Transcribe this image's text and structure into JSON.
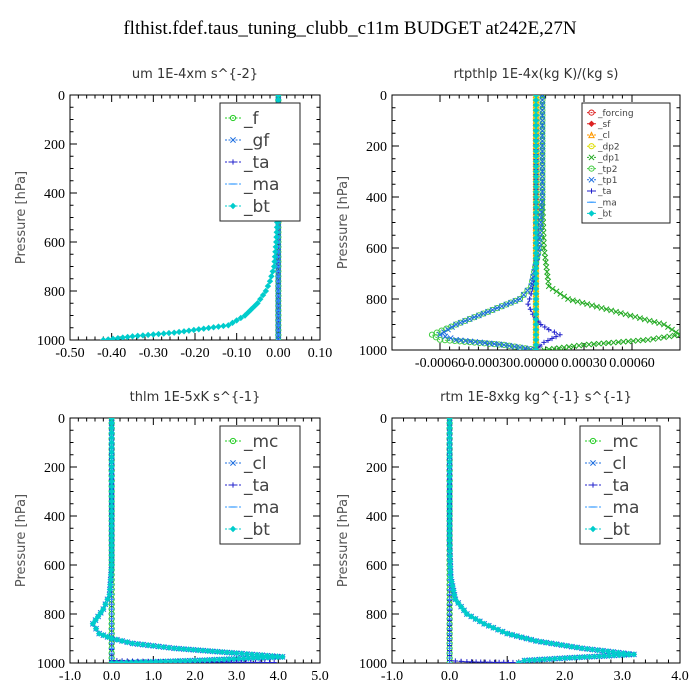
{
  "main_title": "flthist.fdef.taus_tuning_clubb_c11m  BUDGET at242E,27N",
  "chart_data": [
    {
      "type": "line",
      "title": "um  1E-4xm s^{-2}",
      "ylabel": "Pressure [hPa]",
      "xlim": [
        -0.5,
        0.1
      ],
      "ylim": [
        1000,
        0
      ],
      "x_ticks": [
        "-0.50",
        "-0.40",
        "-0.30",
        "-0.20",
        "-0.10",
        "0.00",
        "0.10"
      ],
      "x_tick_values": [
        -0.5,
        -0.4,
        -0.3,
        -0.2,
        -0.1,
        0.0,
        0.1
      ],
      "y_ticks": [
        "0",
        "200",
        "400",
        "600",
        "800",
        "1000"
      ],
      "y_tick_values": [
        0,
        200,
        400,
        600,
        800,
        1000
      ],
      "legend": {
        "position": "top-right",
        "size": "large"
      },
      "series": [
        {
          "name": "_f",
          "color": "#22cc22",
          "marker": "circle",
          "x": [
            0,
            0,
            0,
            0,
            0,
            0,
            0
          ],
          "y": [
            0,
            150,
            300,
            500,
            700,
            900,
            1000
          ]
        },
        {
          "name": "_gf",
          "color": "#1e6fe0",
          "marker": "cross",
          "x": [
            0,
            0,
            0,
            0,
            0,
            0,
            0
          ],
          "y": [
            0,
            150,
            300,
            500,
            700,
            900,
            1000
          ]
        },
        {
          "name": "_ta",
          "color": "#2222cc",
          "marker": "plus",
          "x": [
            0,
            0,
            0,
            0,
            0,
            0,
            0
          ],
          "y": [
            0,
            150,
            300,
            500,
            700,
            900,
            1000
          ]
        },
        {
          "name": "_ma",
          "color": "#3399ff",
          "marker": "dash",
          "x": [
            0,
            0,
            0,
            0,
            0,
            0,
            0
          ],
          "y": [
            0,
            150,
            300,
            500,
            700,
            900,
            1000
          ]
        },
        {
          "name": "_bt",
          "color": "#00cccc",
          "marker": "diamond",
          "x": [
            0.0,
            0.0,
            0.0,
            -0.002,
            -0.005,
            -0.01,
            -0.02,
            -0.03,
            -0.05,
            -0.08,
            -0.12,
            -0.25,
            -0.35,
            -0.42
          ],
          "y": [
            0,
            100,
            300,
            500,
            600,
            700,
            760,
            800,
            850,
            900,
            940,
            970,
            985,
            1000
          ]
        }
      ]
    },
    {
      "type": "line",
      "title": "rtpthlp  1E-4x(kg K)/(kg s)",
      "ylabel": "Pressure [hPa]",
      "xlim": [
        -0.0009,
        0.0009
      ],
      "ylim": [
        1000,
        0
      ],
      "x_ticks": [
        "-0.00060",
        "-0.00030",
        "0.00000",
        "0.00030",
        "0.00060"
      ],
      "x_tick_values": [
        -0.0006,
        -0.0003,
        0.0,
        0.0003,
        0.0006
      ],
      "y_ticks": [
        "0",
        "200",
        "400",
        "600",
        "800",
        "1000"
      ],
      "y_tick_values": [
        0,
        200,
        400,
        600,
        800,
        1000
      ],
      "legend": {
        "position": "top-right",
        "size": "small"
      },
      "series": [
        {
          "name": "_forcing",
          "color": "#dd2222",
          "marker": "circle",
          "x": [
            0,
            0,
            0,
            0,
            0,
            0
          ],
          "y": [
            0,
            200,
            400,
            600,
            800,
            1000
          ]
        },
        {
          "name": "_sf",
          "color": "#dd2222",
          "marker": "diamond",
          "x": [
            0,
            0,
            0,
            0,
            0,
            0
          ],
          "y": [
            0,
            200,
            400,
            600,
            800,
            1000
          ]
        },
        {
          "name": "_cl",
          "color": "#ff9900",
          "marker": "triangle",
          "x": [
            0,
            0,
            0,
            0,
            0,
            0
          ],
          "y": [
            0,
            200,
            400,
            600,
            800,
            1000
          ]
        },
        {
          "name": "_dp2",
          "color": "#dddd00",
          "marker": "circle",
          "x": [
            0,
            0,
            0,
            0,
            0,
            0
          ],
          "y": [
            0,
            200,
            400,
            600,
            800,
            1000
          ]
        },
        {
          "name": "_dp1",
          "color": "#22aa22",
          "marker": "cross",
          "x": [
            4e-05,
            4e-05,
            4e-05,
            5e-05,
            8e-05,
            0.0002,
            0.0005,
            0.0008,
            0.0009,
            0.0007,
            0.0003,
            5e-05
          ],
          "y": [
            0,
            200,
            400,
            600,
            750,
            800,
            850,
            900,
            940,
            960,
            980,
            1000
          ]
        },
        {
          "name": "_tp2",
          "color": "#44cc44",
          "marker": "circle",
          "x": [
            4e-05,
            4e-05,
            4e-05,
            2e-05,
            -3e-05,
            -0.0001,
            -0.0003,
            -0.0005,
            -0.00065,
            -0.0006,
            -0.0002,
            0.0
          ],
          "y": [
            0,
            200,
            400,
            600,
            750,
            800,
            850,
            900,
            940,
            960,
            980,
            1000
          ]
        },
        {
          "name": "_tp1",
          "color": "#1e6fe0",
          "marker": "cross",
          "x": [
            4e-05,
            4e-05,
            4e-05,
            2e-05,
            -3e-05,
            -0.0001,
            -0.0003,
            -0.0005,
            -0.0006,
            -0.0005,
            -0.0002,
            0.0
          ],
          "y": [
            0,
            200,
            400,
            600,
            750,
            800,
            850,
            900,
            940,
            960,
            980,
            1000
          ]
        },
        {
          "name": "_ta",
          "color": "#2222cc",
          "marker": "plus",
          "x": [
            0,
            0,
            -3e-05,
            -5e-05,
            -2e-05,
            3e-05,
            8e-05,
            0.00015,
            5e-05,
            0.0
          ],
          "y": [
            0,
            700,
            780,
            820,
            860,
            900,
            920,
            940,
            970,
            1000
          ]
        },
        {
          "name": "_ma",
          "color": "#3399ff",
          "marker": "dash",
          "x": [
            0,
            0,
            0,
            0,
            0,
            0
          ],
          "y": [
            0,
            200,
            400,
            600,
            800,
            1000
          ]
        },
        {
          "name": "_bt",
          "color": "#00cccc",
          "marker": "diamond",
          "x": [
            0,
            0,
            0,
            0,
            0,
            0
          ],
          "y": [
            0,
            200,
            400,
            600,
            800,
            1000
          ]
        }
      ]
    },
    {
      "type": "line",
      "title": "thlm  1E-5xK s^{-1}",
      "ylabel": "Pressure [hPa]",
      "xlim": [
        -1.0,
        5.0
      ],
      "ylim": [
        1000,
        0
      ],
      "x_ticks": [
        "-1.0",
        "0.0",
        "1.0",
        "2.0",
        "3.0",
        "4.0",
        "5.0"
      ],
      "x_tick_values": [
        -1,
        0,
        1,
        2,
        3,
        4,
        5
      ],
      "y_ticks": [
        "0",
        "200",
        "400",
        "600",
        "800",
        "1000"
      ],
      "y_tick_values": [
        0,
        200,
        400,
        600,
        800,
        1000
      ],
      "legend": {
        "position": "top-right",
        "size": "large"
      },
      "series": [
        {
          "name": "_mc",
          "color": "#22cc22",
          "marker": "circle",
          "x": [
            0,
            0,
            0,
            0,
            0,
            0,
            0
          ],
          "y": [
            0,
            150,
            300,
            500,
            700,
            900,
            1000
          ]
        },
        {
          "name": "_cl",
          "color": "#1e6fe0",
          "marker": "cross",
          "x": [
            0.0,
            0.0,
            0.0,
            0.0,
            -0.05,
            -0.2,
            -0.45,
            -0.3,
            0.0,
            0.5,
            1.5,
            3.0,
            4.1,
            2.0,
            0.0
          ],
          "y": [
            0,
            200,
            400,
            600,
            720,
            780,
            840,
            880,
            900,
            920,
            940,
            960,
            975,
            990,
            1000
          ]
        },
        {
          "name": "_ta",
          "color": "#2222cc",
          "marker": "plus",
          "x": [
            0,
            0,
            0,
            0,
            1.0,
            2.0,
            3.0,
            3.9
          ],
          "y": [
            0,
            600,
            900,
            990,
            994,
            996,
            997,
            998
          ]
        },
        {
          "name": "_ma",
          "color": "#3399ff",
          "marker": "dash",
          "x": [
            0,
            0,
            0,
            0,
            0,
            0
          ],
          "y": [
            0,
            200,
            400,
            600,
            800,
            1000
          ]
        },
        {
          "name": "_bt",
          "color": "#00cccc",
          "marker": "diamond",
          "x": [
            0.0,
            0.0,
            0.0,
            0.0,
            -0.05,
            -0.2,
            -0.45,
            -0.3,
            0.0,
            0.5,
            1.5,
            3.0,
            4.1,
            2.0,
            0.0
          ],
          "y": [
            0,
            200,
            400,
            600,
            720,
            780,
            840,
            880,
            900,
            920,
            940,
            960,
            975,
            990,
            1000
          ]
        }
      ]
    },
    {
      "type": "line",
      "title": "rtm  1E-8xkg kg^{-1} s^{-1}",
      "ylabel": "Pressure [hPa]",
      "xlim": [
        -1.0,
        4.0
      ],
      "ylim": [
        1000,
        0
      ],
      "x_ticks": [
        "-1.0",
        "0.0",
        "1.0",
        "2.0",
        "3.0",
        "4.0"
      ],
      "x_tick_values": [
        -1,
        0,
        1,
        2,
        3,
        4
      ],
      "y_ticks": [
        "0",
        "200",
        "400",
        "600",
        "800",
        "1000"
      ],
      "y_tick_values": [
        0,
        200,
        400,
        600,
        800,
        1000
      ],
      "legend": {
        "position": "top-right",
        "size": "large"
      },
      "series": [
        {
          "name": "_mc",
          "color": "#22cc22",
          "marker": "circle",
          "x": [
            0,
            0,
            0,
            0,
            0,
            0,
            0
          ],
          "y": [
            0,
            150,
            300,
            500,
            700,
            900,
            1000
          ]
        },
        {
          "name": "_cl",
          "color": "#1e6fe0",
          "marker": "cross",
          "x": [
            0.0,
            0.0,
            0.0,
            0.02,
            0.1,
            0.3,
            0.6,
            1.0,
            1.5,
            2.3,
            3.2,
            2.0,
            1.3,
            1.2
          ],
          "y": [
            0,
            300,
            500,
            650,
            740,
            800,
            840,
            880,
            910,
            940,
            965,
            980,
            990,
            1000
          ]
        },
        {
          "name": "_ta",
          "color": "#2222cc",
          "marker": "plus",
          "x": [
            0,
            0,
            0,
            0.3,
            0.7,
            1.1
          ],
          "y": [
            0,
            600,
            990,
            995,
            997,
            998
          ]
        },
        {
          "name": "_ma",
          "color": "#3399ff",
          "marker": "dash",
          "x": [
            0,
            0,
            0,
            0,
            0,
            0
          ],
          "y": [
            0,
            200,
            400,
            600,
            800,
            1000
          ]
        },
        {
          "name": "_bt",
          "color": "#00cccc",
          "marker": "diamond",
          "x": [
            0.0,
            0.0,
            0.0,
            0.02,
            0.1,
            0.3,
            0.6,
            1.0,
            1.5,
            2.3,
            3.2,
            2.0,
            1.3,
            1.2
          ],
          "y": [
            0,
            300,
            500,
            650,
            740,
            800,
            840,
            880,
            910,
            940,
            965,
            980,
            990,
            1000
          ]
        }
      ]
    }
  ]
}
